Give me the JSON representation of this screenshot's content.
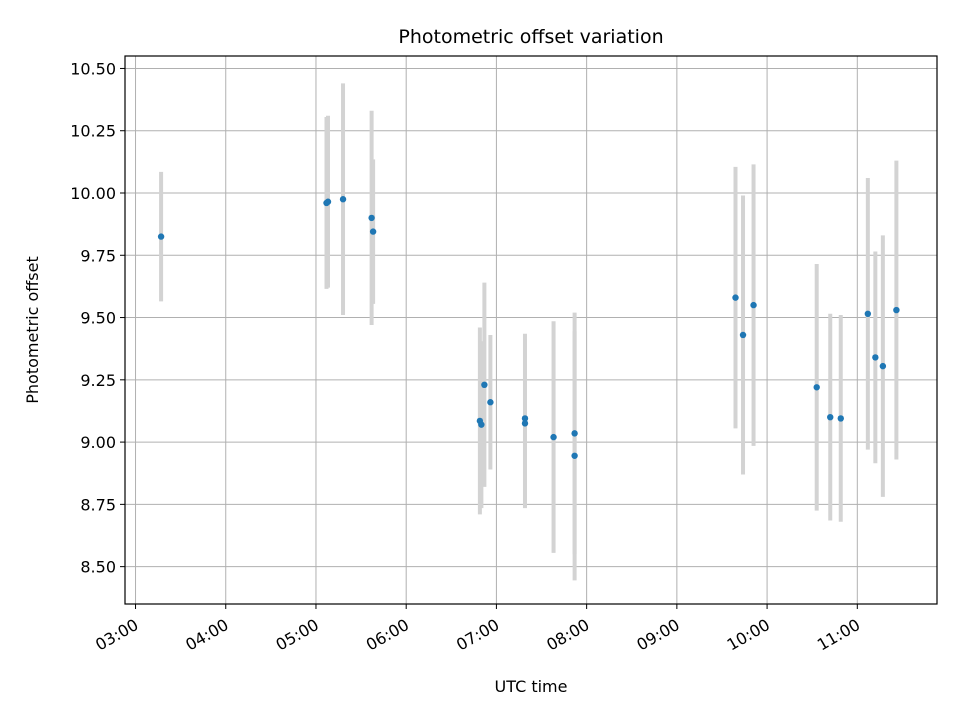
{
  "chart_data": {
    "type": "scatter",
    "title": "Photometric offset variation",
    "xlabel": "UTC time",
    "ylabel": "Photometric offset",
    "x_ticks": [
      "03:00",
      "04:00",
      "05:00",
      "06:00",
      "07:00",
      "08:00",
      "09:00",
      "10:00",
      "11:00"
    ],
    "y_ticks": [
      "8.50",
      "8.75",
      "9.00",
      "9.25",
      "9.50",
      "9.75",
      "10.00",
      "10.25",
      "10.50"
    ],
    "xlim": [
      "02:53",
      "11:53"
    ],
    "ylim": [
      8.35,
      10.55
    ],
    "grid": true,
    "point_color": "#1f77b4",
    "errorbar_color": "#d3d3d3",
    "points": [
      {
        "x": "03:17",
        "y": 9.825,
        "err": 0.26
      },
      {
        "x": "05:07",
        "y": 9.96,
        "err": 0.345
      },
      {
        "x": "05:08",
        "y": 9.965,
        "err": 0.345
      },
      {
        "x": "05:18",
        "y": 9.975,
        "err": 0.465
      },
      {
        "x": "05:37",
        "y": 9.9,
        "err": 0.43
      },
      {
        "x": "05:38",
        "y": 9.845,
        "err": 0.29
      },
      {
        "x": "06:49",
        "y": 9.085,
        "err": 0.375
      },
      {
        "x": "06:50",
        "y": 9.07,
        "err": 0.335
      },
      {
        "x": "06:52",
        "y": 9.23,
        "err": 0.41
      },
      {
        "x": "06:56",
        "y": 9.16,
        "err": 0.27
      },
      {
        "x": "07:19",
        "y": 9.095,
        "err": 0.34
      },
      {
        "x": "07:19",
        "y": 9.075,
        "err": 0.34
      },
      {
        "x": "07:38",
        "y": 9.02,
        "err": 0.465
      },
      {
        "x": "07:52",
        "y": 9.035,
        "err": 0.485
      },
      {
        "x": "07:52",
        "y": 8.945,
        "err": 0.5
      },
      {
        "x": "09:39",
        "y": 9.58,
        "err": 0.525
      },
      {
        "x": "09:44",
        "y": 9.43,
        "err": 0.56
      },
      {
        "x": "09:51",
        "y": 9.55,
        "err": 0.565
      },
      {
        "x": "10:33",
        "y": 9.22,
        "err": 0.495
      },
      {
        "x": "10:42",
        "y": 9.1,
        "err": 0.415
      },
      {
        "x": "10:49",
        "y": 9.095,
        "err": 0.415
      },
      {
        "x": "11:07",
        "y": 9.515,
        "err": 0.545
      },
      {
        "x": "11:12",
        "y": 9.34,
        "err": 0.425
      },
      {
        "x": "11:17",
        "y": 9.305,
        "err": 0.525
      },
      {
        "x": "11:26",
        "y": 9.53,
        "err": 0.6
      }
    ]
  }
}
